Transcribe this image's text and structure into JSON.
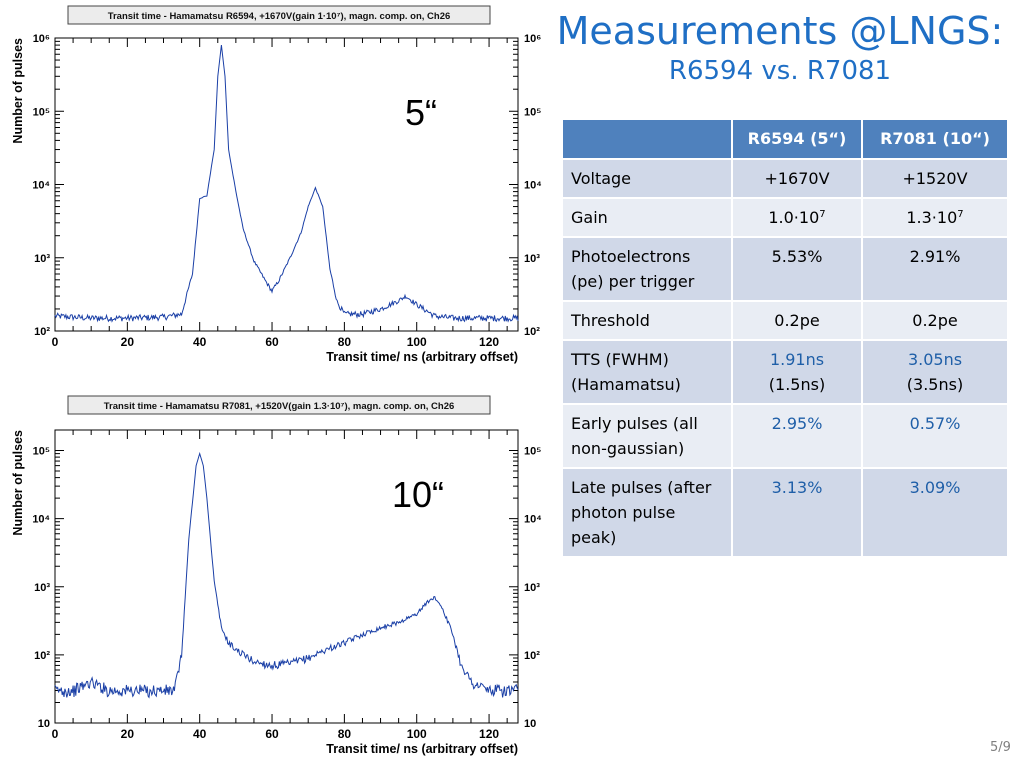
{
  "slide": {
    "title": "Measurements @LNGS:",
    "subtitle": "R6594 vs. R7081",
    "page_number": "5/9",
    "label_top": "5“",
    "label_bottom": "10“"
  },
  "table": {
    "headers": [
      "",
      "R6594 (5“)",
      "R7081  (10“)"
    ],
    "rows": [
      {
        "label": "Voltage",
        "a": "+1670V",
        "b": "+1520V"
      },
      {
        "label": "Gain",
        "a_base": "1.0·10",
        "a_exp": "7",
        "b_base": "1.3·10",
        "b_exp": "7"
      },
      {
        "label": "Photoelectrons (pe) per trigger",
        "a": "5.53%",
        "b": "2.91%"
      },
      {
        "label": "Threshold",
        "a": "0.2pe",
        "b": "0.2pe"
      },
      {
        "label": "TTS (FWHM) (Hamamatsu)",
        "a": "1.91ns",
        "a2": "(1.5ns)",
        "b": "3.05ns",
        "b2": "(3.5ns)"
      },
      {
        "label": "Early pulses (all non-gaussian)",
        "a": "2.95%",
        "b": "0.57%"
      },
      {
        "label": "Late pulses (after photon pulse peak)",
        "a": "3.13%",
        "b": "3.09%"
      }
    ]
  },
  "chart_data": [
    {
      "type": "line",
      "title": "Transit time - Hamamatsu R6594, +1670V(gain 1·10⁷), magn. comp. on, Ch26",
      "xlabel": "Transit time/ ns (arbitrary offset)",
      "ylabel": "Number of pulses",
      "log_y": true,
      "xlim": [
        0,
        128
      ],
      "ylim": [
        100,
        1000000
      ],
      "x_ticks": [
        0,
        20,
        40,
        60,
        80,
        100,
        120
      ],
      "y_tick_labels": [
        "10²",
        "10³",
        "10⁴",
        "10⁵",
        "10⁶"
      ],
      "color": "#1a3fa6",
      "x": [
        0,
        10,
        20,
        30,
        35,
        38,
        40,
        42,
        44,
        45,
        46,
        47,
        48,
        50,
        52,
        55,
        58,
        60,
        62,
        65,
        68,
        70,
        72,
        74,
        76,
        78,
        80,
        85,
        90,
        95,
        97,
        100,
        105,
        110,
        120,
        128
      ],
      "y": [
        160,
        150,
        150,
        155,
        170,
        600,
        6500,
        7000,
        30000,
        300000,
        800000,
        300000,
        30000,
        8000,
        2500,
        900,
        500,
        350,
        500,
        1000,
        2200,
        5000,
        9000,
        5000,
        700,
        250,
        170,
        170,
        200,
        260,
        300,
        230,
        160,
        150,
        150,
        150
      ]
    },
    {
      "type": "line",
      "title": "Transit time - Hamamatsu R7081, +1520V(gain 1.3·10⁷), magn. comp. on, Ch26",
      "xlabel": "Transit time/ ns (arbitrary offset)",
      "ylabel": "Number of pulses",
      "log_y": true,
      "xlim": [
        0,
        128
      ],
      "ylim": [
        10,
        200000
      ],
      "x_ticks": [
        0,
        20,
        40,
        60,
        80,
        100,
        120
      ],
      "y_tick_labels": [
        "10",
        "10²",
        "10³",
        "10⁴",
        "10⁵"
      ],
      "color": "#1a3fa6",
      "x": [
        0,
        5,
        10,
        15,
        20,
        25,
        30,
        33,
        35,
        37,
        39,
        40,
        41,
        42,
        44,
        46,
        48,
        50,
        55,
        60,
        65,
        70,
        75,
        80,
        85,
        90,
        95,
        100,
        103,
        105,
        107,
        110,
        112,
        115,
        120,
        128
      ],
      "y": [
        30,
        30,
        40,
        30,
        30,
        30,
        30,
        30,
        100,
        5000,
        60000,
        90000,
        60000,
        20000,
        1200,
        250,
        150,
        120,
        80,
        70,
        75,
        90,
        120,
        150,
        200,
        250,
        300,
        400,
        600,
        700,
        500,
        200,
        80,
        40,
        30,
        30
      ]
    }
  ]
}
